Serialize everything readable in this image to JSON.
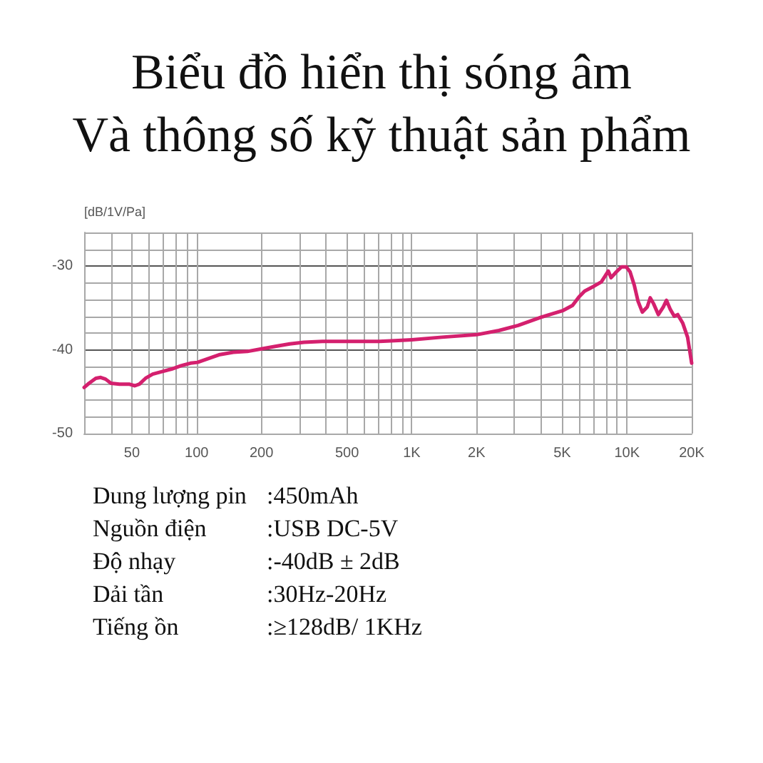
{
  "chart_data": {
    "type": "line",
    "title": "Biểu đồ hiển thị sóng âm\nVà thông số kỹ thuật sản phẩm",
    "ylabel": "[dB/1V/Pa]",
    "x": [
      30,
      31.6,
      34,
      35.8,
      37.7,
      40,
      43.8,
      48.5,
      51.6,
      54.2,
      57.9,
      62.5,
      69,
      76.5,
      84.6,
      93.6,
      101,
      112,
      127,
      148,
      172,
      200,
      232,
      271,
      315,
      385,
      524,
      707,
      866,
      1000,
      1380,
      2000,
      2540,
      3120,
      4010,
      5060,
      5590,
      5980,
      6360,
      7040,
      7600,
      7870,
      8190,
      8440,
      8930,
      9440,
      9930,
      10340,
      10820,
      11260,
      11790,
      12430,
      12830,
      13300,
      14000,
      14750,
      15270,
      15920,
      16600,
      17230,
      18160,
      19140,
      20000
    ],
    "series": [
      {
        "color": "#d4206e",
        "values": [
          -44.5,
          -44.0,
          -43.4,
          -43.3,
          -43.5,
          -44.0,
          -44.1,
          -44.1,
          -44.3,
          -44.1,
          -43.4,
          -42.9,
          -42.6,
          -42.3,
          -41.9,
          -41.6,
          -41.5,
          -41.1,
          -40.6,
          -40.3,
          -40.2,
          -39.9,
          -39.6,
          -39.3,
          -39.1,
          -39.0,
          -39.0,
          -39.0,
          -38.9,
          -38.8,
          -38.5,
          -38.2,
          -37.7,
          -37.1,
          -36.1,
          -35.3,
          -34.7,
          -33.7,
          -33.0,
          -32.4,
          -31.9,
          -31.3,
          -30.6,
          -31.4,
          -30.7,
          -30.1,
          -30.1,
          -30.7,
          -32.3,
          -34.2,
          -35.5,
          -34.9,
          -33.8,
          -34.5,
          -35.8,
          -34.9,
          -34.1,
          -35.2,
          -36.0,
          -35.8,
          -36.8,
          -38.5,
          -41.6
        ]
      }
    ],
    "log": "x",
    "xlim": [
      30,
      20000
    ],
    "xticks": [
      {
        "value": 30,
        "label": null
      },
      {
        "value": 40,
        "label": null
      },
      50,
      {
        "value": 60,
        "label": null
      },
      {
        "value": 70,
        "label": null
      },
      {
        "value": 80,
        "label": null
      },
      {
        "value": 90,
        "label": null
      },
      100,
      200,
      {
        "value": 300,
        "label": null
      },
      {
        "value": 400,
        "label": null
      },
      500,
      {
        "value": 600,
        "label": null
      },
      {
        "value": 700,
        "label": null
      },
      {
        "value": 800,
        "label": null
      },
      {
        "value": 900,
        "label": null
      },
      {
        "value": 1000,
        "label": "1K"
      },
      {
        "value": 2000,
        "label": "2K"
      },
      {
        "value": 3000,
        "label": null
      },
      {
        "value": 4000,
        "label": null
      },
      {
        "value": 5000,
        "label": "5K"
      },
      {
        "value": 6000,
        "label": null
      },
      {
        "value": 7000,
        "label": null
      },
      {
        "value": 8000,
        "label": null
      },
      {
        "value": 9000,
        "label": null
      },
      {
        "value": 10000,
        "label": "10K"
      },
      {
        "value": 20000,
        "label": "20K"
      }
    ],
    "ylim": [
      -50,
      -26
    ],
    "yticks": [
      -50,
      {
        "value": -48,
        "label": null
      },
      {
        "value": -46,
        "label": null
      },
      {
        "value": -44,
        "label": null
      },
      {
        "value": -42,
        "label": null
      },
      -40,
      {
        "value": -38,
        "label": null
      },
      {
        "value": -36,
        "label": null
      },
      {
        "value": -34,
        "label": null
      },
      {
        "value": -32,
        "label": null
      },
      -30,
      {
        "value": -28,
        "label": null
      },
      {
        "value": -26,
        "label": null
      }
    ],
    "grid": true,
    "marker": "none",
    "line_style": "solid",
    "annotations": [
      "Dung lượng pin",
      ":450mAh",
      "Nguồn điện",
      ":USB DC-5V",
      "Độ nhạy",
      ":-40dB ± 2dB",
      "Dải tần",
      ":30Hz-20Hz",
      "Tiếng ồn",
      ":≥128dB/ 1KHz"
    ]
  }
}
